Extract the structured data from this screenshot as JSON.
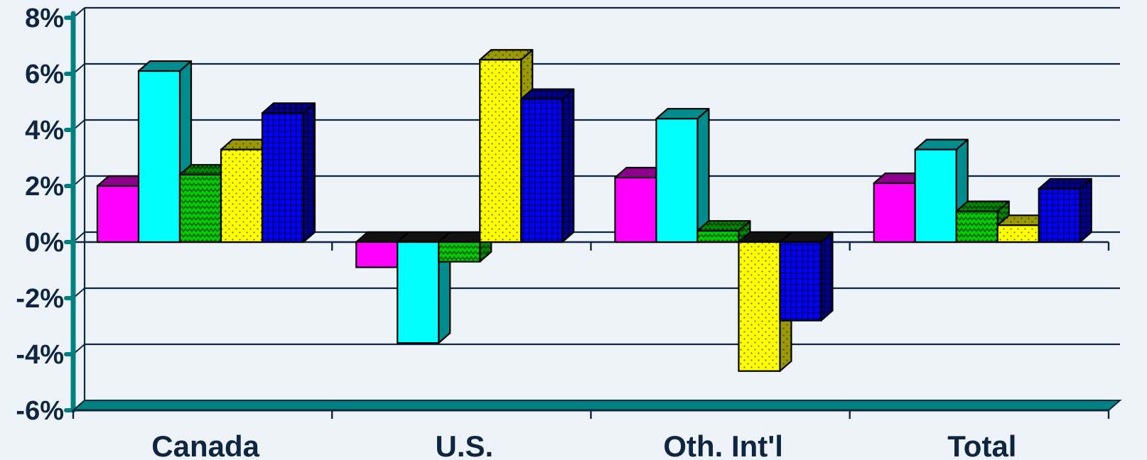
{
  "chart_data": {
    "type": "bar",
    "style": "3d-clustered-column",
    "categories": [
      "Canada",
      "U.S.",
      "Oth. Int'l",
      "Total"
    ],
    "series": [
      {
        "values": [
          2.0,
          -0.9,
          2.3,
          2.1
        ],
        "color": "#ff00ff",
        "pattern": "solid"
      },
      {
        "values": [
          6.1,
          -3.6,
          4.4,
          3.3
        ],
        "color": "#00ffff",
        "pattern": "solid"
      },
      {
        "values": [
          2.4,
          -0.7,
          0.4,
          1.1
        ],
        "color": "#00cc00",
        "pattern": "zigzag"
      },
      {
        "values": [
          3.3,
          6.5,
          -4.6,
          0.6
        ],
        "color": "#ffff00",
        "pattern": "dots"
      },
      {
        "values": [
          4.6,
          5.1,
          -2.8,
          1.9
        ],
        "color": "#0000ff",
        "pattern": "grid"
      }
    ],
    "ylim": [
      -6,
      8
    ],
    "yticks": [
      8,
      6,
      4,
      2,
      0,
      -2,
      -4,
      -6
    ],
    "ytick_labels": [
      "8%",
      "6%",
      "4%",
      "2%",
      "0%",
      "-2%",
      "-4%",
      "-6%"
    ],
    "grid": true,
    "legend": "none",
    "title": "",
    "xlabel": "",
    "ylabel": "",
    "colors": {
      "axis": "#008080",
      "grid_line": "#0f2640",
      "plot_background": "#eef3fa",
      "text": "#0f2640"
    }
  }
}
